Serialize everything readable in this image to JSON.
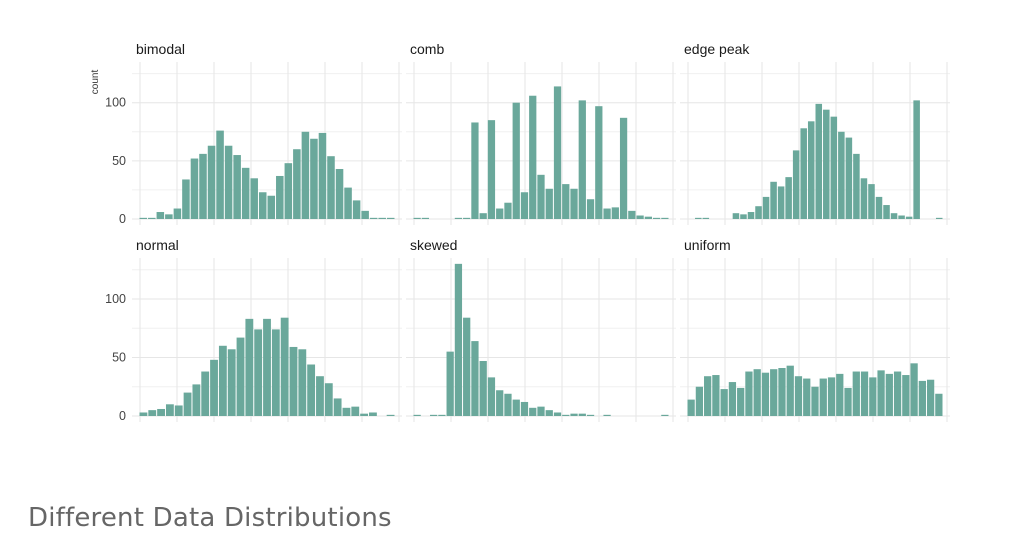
{
  "caption": "Different Data Distributions",
  "chart_data": {
    "type": "bar",
    "ylabel": "count",
    "ylim": [
      0,
      135
    ],
    "yticks": [
      0,
      50,
      100
    ],
    "grid": true,
    "bar_color": "#6aa89b",
    "grid_color": "#e6e6e6",
    "panels": [
      {
        "name": "bimodal",
        "values": [
          1,
          1,
          6,
          4,
          9,
          34,
          52,
          56,
          63,
          76,
          63,
          55,
          44,
          35,
          23,
          20,
          37,
          48,
          60,
          75,
          69,
          74,
          54,
          43,
          27,
          16,
          7,
          1,
          1,
          1
        ]
      },
      {
        "name": "comb",
        "values": [
          1,
          1,
          0,
          0,
          0,
          1,
          1,
          83,
          5,
          85,
          9,
          14,
          100,
          23,
          106,
          38,
          26,
          114,
          30,
          26,
          102,
          17,
          97,
          9,
          10,
          87,
          7,
          3,
          2,
          1,
          1
        ]
      },
      {
        "name": "edge peak",
        "values": [
          0,
          1,
          1,
          0,
          0,
          0,
          5,
          4,
          6,
          11,
          19,
          32,
          28,
          36,
          59,
          78,
          84,
          99,
          94,
          88,
          75,
          70,
          56,
          35,
          30,
          19,
          12,
          5,
          3,
          2,
          102,
          0,
          0,
          1
        ]
      },
      {
        "name": "normal",
        "values": [
          3,
          5,
          6,
          10,
          9,
          20,
          27,
          38,
          48,
          60,
          57,
          67,
          83,
          74,
          83,
          74,
          84,
          59,
          57,
          44,
          34,
          28,
          15,
          7,
          8,
          2,
          3,
          0,
          1
        ]
      },
      {
        "name": "skewed",
        "values": [
          1,
          0,
          1,
          1,
          55,
          130,
          84,
          64,
          47,
          33,
          22,
          19,
          14,
          12,
          7,
          8,
          5,
          3,
          1,
          2,
          2,
          1,
          0,
          1,
          0,
          0,
          0,
          0,
          0,
          0,
          1
        ]
      },
      {
        "name": "uniform",
        "values": [
          14,
          25,
          34,
          35,
          23,
          29,
          24,
          38,
          40,
          37,
          40,
          41,
          43,
          34,
          32,
          25,
          32,
          33,
          36,
          24,
          38,
          38,
          33,
          39,
          36,
          38,
          35,
          45,
          30,
          31,
          19
        ]
      }
    ]
  }
}
